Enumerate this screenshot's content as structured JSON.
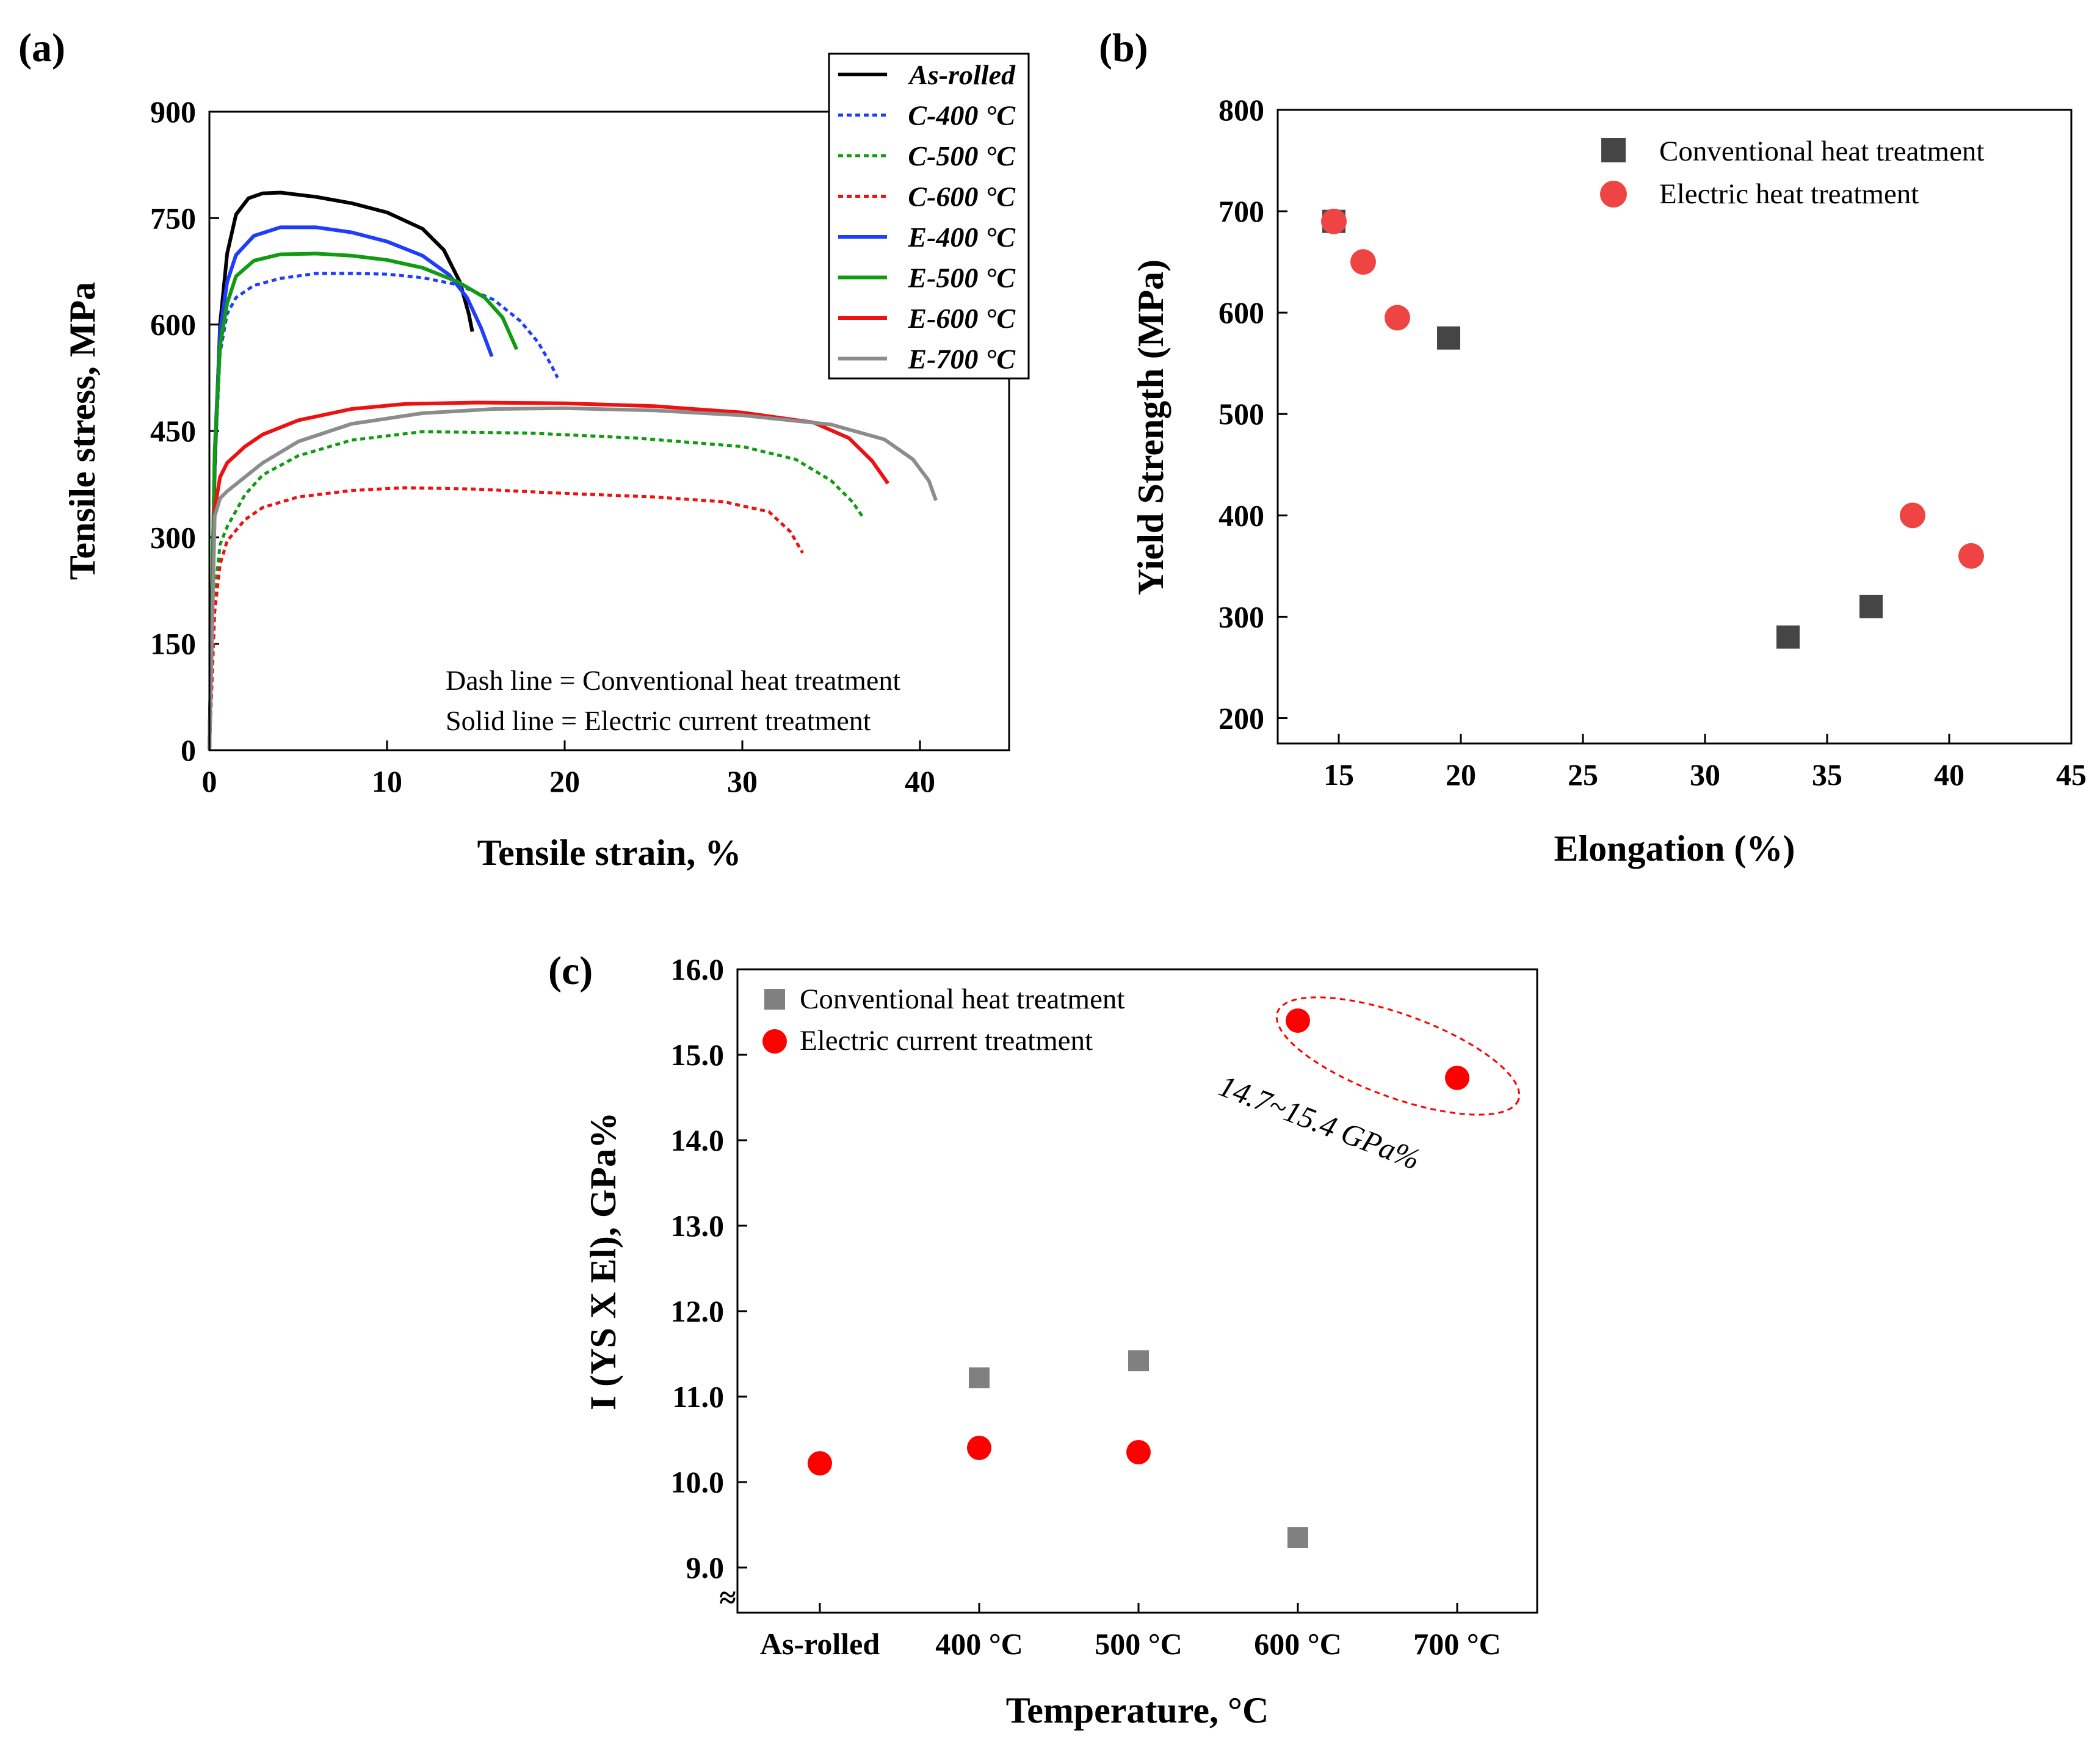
{
  "panels": {
    "a": "(a)",
    "b": "(b)",
    "c": "(c)"
  },
  "chart_data": [
    {
      "type": "line",
      "panel": "(a)",
      "xlabel": "Tensile strain, %",
      "ylabel": "Tensile stress, MPa",
      "xlim": [
        0,
        45
      ],
      "ylim": [
        0,
        900
      ],
      "xticks": [
        "0",
        "10",
        "20",
        "30",
        "40"
      ],
      "yticks": [
        "0",
        "150",
        "300",
        "450",
        "600",
        "750",
        "900"
      ],
      "legend_placement": "top-right",
      "notes": [
        "Dash line = Conventional heat treatment",
        "Solid line = Electric current treatment"
      ],
      "series": [
        {
          "name": "As-rolled",
          "color": "#000000",
          "dash": false,
          "x": [
            0,
            0.3,
            0.6,
            1,
            1.5,
            2.2,
            3,
            4,
            6,
            8,
            10,
            12,
            13.2,
            14.1,
            14.6,
            14.8
          ],
          "y": [
            0,
            400,
            600,
            700,
            755,
            778,
            785,
            786,
            780,
            771,
            758,
            735,
            705,
            660,
            615,
            590
          ]
        },
        {
          "name": "C-400 °C",
          "color": "#1f3dff",
          "dash": true,
          "x": [
            0,
            0.3,
            0.6,
            1,
            1.5,
            2.5,
            4,
            6,
            8,
            10,
            12,
            14,
            16,
            17.5,
            18.5,
            19.2,
            19.6
          ],
          "y": [
            0,
            400,
            560,
            615,
            638,
            655,
            665,
            672,
            672,
            671,
            666,
            656,
            635,
            605,
            575,
            545,
            525
          ]
        },
        {
          "name": "C-500 °C",
          "color": "#109b10",
          "dash": true,
          "x": [
            0,
            0.3,
            0.6,
            1,
            2,
            3,
            5,
            8,
            12,
            18,
            24,
            30,
            33,
            35,
            36.2,
            36.8
          ],
          "y": [
            0,
            220,
            290,
            315,
            360,
            388,
            415,
            437,
            449,
            447,
            440,
            428,
            410,
            380,
            350,
            328
          ]
        },
        {
          "name": "C-600 °C",
          "color": "#ee1111",
          "dash": true,
          "x": [
            0,
            0.3,
            0.6,
            1,
            2,
            3,
            5,
            8,
            11,
            15,
            20,
            25,
            29,
            31.5,
            32.7,
            33.4
          ],
          "y": [
            0,
            195,
            262,
            295,
            325,
            342,
            357,
            366,
            370,
            368,
            362,
            357,
            350,
            336,
            308,
            278
          ]
        },
        {
          "name": "E-400 °C",
          "color": "#1f3dff",
          "dash": false,
          "x": [
            0,
            0.3,
            0.6,
            1,
            1.5,
            2.5,
            4,
            6,
            8,
            10,
            12,
            13.5,
            14.5,
            15.3,
            15.9
          ],
          "y": [
            0,
            420,
            590,
            660,
            698,
            725,
            737,
            737,
            730,
            717,
            697,
            670,
            638,
            595,
            555
          ]
        },
        {
          "name": "E-500 °C",
          "color": "#109b10",
          "dash": false,
          "x": [
            0,
            0.3,
            0.6,
            1,
            1.5,
            2.5,
            4,
            6,
            8,
            10,
            12,
            14,
            15.5,
            16.5,
            17.3
          ],
          "y": [
            0,
            420,
            570,
            630,
            668,
            690,
            699,
            700,
            697,
            691,
            680,
            660,
            638,
            610,
            565
          ]
        },
        {
          "name": "E-600 °C",
          "color": "#ee1111",
          "dash": false,
          "x": [
            0,
            0.3,
            0.6,
            1,
            2,
            3,
            5,
            8,
            11,
            15,
            20,
            25,
            30,
            34,
            36,
            37.3,
            38.2
          ],
          "y": [
            0,
            340,
            385,
            405,
            428,
            445,
            465,
            481,
            488,
            490,
            489,
            485,
            476,
            462,
            440,
            408,
            376
          ]
        },
        {
          "name": "E-700 °C",
          "color": "#8c8c8c",
          "dash": false,
          "x": [
            0,
            0.3,
            0.6,
            1,
            2,
            3,
            5,
            8,
            12,
            16,
            20,
            25,
            30,
            35,
            38,
            39.6,
            40.5,
            40.9
          ],
          "y": [
            0,
            330,
            355,
            365,
            385,
            405,
            435,
            460,
            475,
            481,
            482,
            479,
            472,
            459,
            438,
            410,
            380,
            352
          ]
        }
      ]
    },
    {
      "type": "scatter",
      "panel": "(b)",
      "xlabel": "Elongation (%)",
      "ylabel": "Yield Strength (MPa)",
      "xlim": [
        12.5,
        45
      ],
      "ylim": [
        175,
        800
      ],
      "xticks": [
        "15",
        "20",
        "25",
        "30",
        "35",
        "40",
        "45"
      ],
      "yticks": [
        "200",
        "300",
        "400",
        "500",
        "600",
        "700",
        "800"
      ],
      "legend_placement": "top-right",
      "series": [
        {
          "name": "Conventional heat treatment",
          "color": "#454545",
          "marker": "square",
          "x": [
            14.8,
            19.5,
            33.4,
            36.8
          ],
          "y": [
            690,
            575,
            280,
            310
          ]
        },
        {
          "name": "Electric heat treatment",
          "color": "#ef4444",
          "marker": "circle",
          "x": [
            14.8,
            16.0,
            17.4,
            38.5,
            40.9
          ],
          "y": [
            690,
            650,
            595,
            400,
            360
          ]
        }
      ]
    },
    {
      "type": "scatter",
      "panel": "(c)",
      "xlabel": "Temperature, °C",
      "ylabel": "I (YS X El), GPa%",
      "categories": [
        "As-rolled",
        "400 °C",
        "500 °C",
        "600 °C",
        "700 °C"
      ],
      "ylim": [
        8.5,
        16.0
      ],
      "yticks": [
        "9.0",
        "10.0",
        "11.0",
        "12.0",
        "13.0",
        "14.0",
        "15.0",
        "16.0"
      ],
      "axis_break": "≈",
      "legend_placement": "top-left",
      "annotation": "14.7~15.4 GPa%",
      "series": [
        {
          "name": "Conventional heat treatment",
          "color": "#808080",
          "marker": "square",
          "values": [
            null,
            11.22,
            11.42,
            9.35,
            null
          ]
        },
        {
          "name": "Electric current treatment",
          "color": "#ff0000",
          "marker": "circle",
          "values": [
            10.22,
            10.4,
            10.35,
            15.4,
            14.73
          ]
        }
      ]
    }
  ]
}
